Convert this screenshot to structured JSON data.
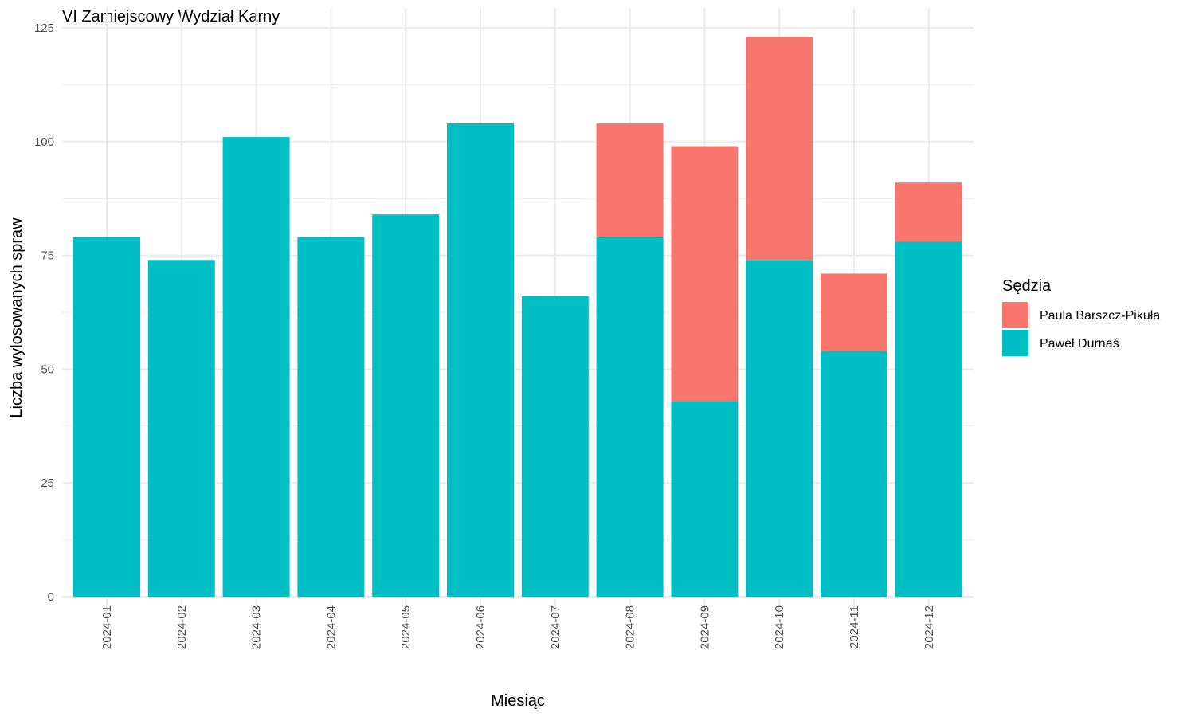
{
  "chart_data": {
    "type": "bar",
    "stacked": true,
    "title": "VI Zamiejscowy Wydział Karny",
    "xlabel": "Miesiąc",
    "ylabel": "Liczba wylosowanych spraw",
    "ylim": [
      0,
      125
    ],
    "yticks": [
      0,
      25,
      50,
      75,
      100,
      125
    ],
    "grid": true,
    "legend_position": "right",
    "legend_title": "Sędzia",
    "categories": [
      "2024-01",
      "2024-02",
      "2024-03",
      "2024-04",
      "2024-05",
      "2024-06",
      "2024-07",
      "2024-08",
      "2024-09",
      "2024-10",
      "2024-11",
      "2024-12"
    ],
    "series": [
      {
        "name": "Paweł Durnaś",
        "color": "#00BFC4",
        "values": [
          79,
          74,
          101,
          79,
          84,
          104,
          66,
          79,
          43,
          74,
          54,
          78
        ]
      },
      {
        "name": "Paula Barszcz-Pikuła",
        "color": "#F8766D",
        "values": [
          0,
          0,
          0,
          0,
          0,
          0,
          0,
          25,
          56,
          49,
          17,
          13
        ]
      }
    ],
    "legend_order": [
      "Paula Barszcz-Pikuła",
      "Paweł Durnaś"
    ]
  }
}
